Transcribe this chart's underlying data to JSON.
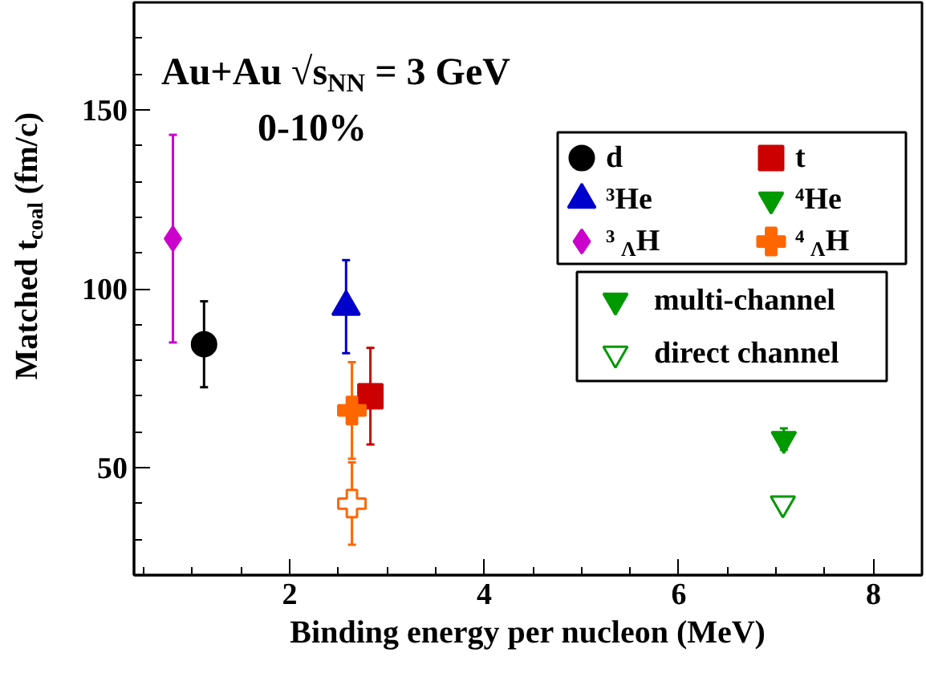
{
  "chart_data": {
    "type": "scatter",
    "xlabel": "Binding energy per nucleon (MeV)",
    "ylabel": "Matched t$_{coal}$ (fm/c)",
    "annotations": [
      "Au+Au √s$_{NN}$ = 3 GeV",
      "0-10%"
    ],
    "xlim": [
      0.4,
      8.5
    ],
    "xticks": [
      {
        "value": 0.5,
        "label": null
      },
      {
        "value": 1,
        "label": null
      },
      {
        "value": 1.5,
        "label": null
      },
      2,
      {
        "value": 2.5,
        "label": null
      },
      {
        "value": 3,
        "label": null
      },
      {
        "value": 3.5,
        "label": null
      },
      4,
      {
        "value": 4.5,
        "label": null
      },
      {
        "value": 5,
        "label": null
      },
      {
        "value": 5.5,
        "label": null
      },
      6,
      {
        "value": 6.5,
        "label": null
      },
      {
        "value": 7,
        "label": null
      },
      {
        "value": 7.5,
        "label": null
      },
      8
    ],
    "ylim": [
      20,
      180
    ],
    "yticks": [
      {
        "value": 30,
        "label": null
      },
      {
        "value": 40,
        "label": null
      },
      50,
      {
        "value": 60,
        "label": null
      },
      {
        "value": 70,
        "label": null
      },
      {
        "value": 80,
        "label": null
      },
      {
        "value": 90,
        "label": null
      },
      100,
      {
        "value": 110,
        "label": null
      },
      {
        "value": 120,
        "label": null
      },
      {
        "value": 130,
        "label": null
      },
      {
        "value": 140,
        "label": null
      },
      150,
      {
        "value": 160,
        "label": null
      },
      {
        "value": 170,
        "label": null
      }
    ],
    "legend": "top right",
    "series": [
      {
        "name": "d",
        "color": "#000000",
        "marker": "circle",
        "x": [
          1.12
        ],
        "values": [
          84.5
        ],
        "errors": [
          12
        ]
      },
      {
        "name": "t",
        "color": "#cc0000",
        "marker": "square",
        "x": [
          2.83
        ],
        "values": [
          70
        ],
        "errors": [
          13.5
        ]
      },
      {
        "name": "³He",
        "color": "#0000cc",
        "marker": "triangle",
        "x": [
          2.58
        ],
        "values": [
          95
        ],
        "errors": [
          13
        ]
      },
      {
        "name": "⁴He",
        "color": "#009900",
        "marker": "triangle",
        "x": [
          7.08
        ],
        "values": [
          58
        ],
        "errors": [
          3
        ]
      },
      {
        "name": "³$_{Λ}$H",
        "color": "#cc00cc",
        "marker": "diamond",
        "x": [
          0.8
        ],
        "values": [
          114
        ],
        "errors": [
          29
        ]
      },
      {
        "name": "⁴$_{Λ}$H",
        "color": "#ff6600",
        "marker": "cross",
        "x": [
          2.64
        ],
        "values": [
          66
        ],
        "errors": [
          13.5
        ]
      },
      {
        "color": "#ff6600",
        "marker": "cross",
        "x": [
          2.64
        ],
        "values": [
          40
        ],
        "errors": [
          11.5
        ]
      },
      {
        "name": "multi-channel",
        "color": "#009900",
        "marker": "triangle"
      },
      {
        "name": "direct channel",
        "color": "#009900",
        "marker": "triangle",
        "x": [
          7.07
        ],
        "values": [
          40
        ]
      }
    ]
  }
}
